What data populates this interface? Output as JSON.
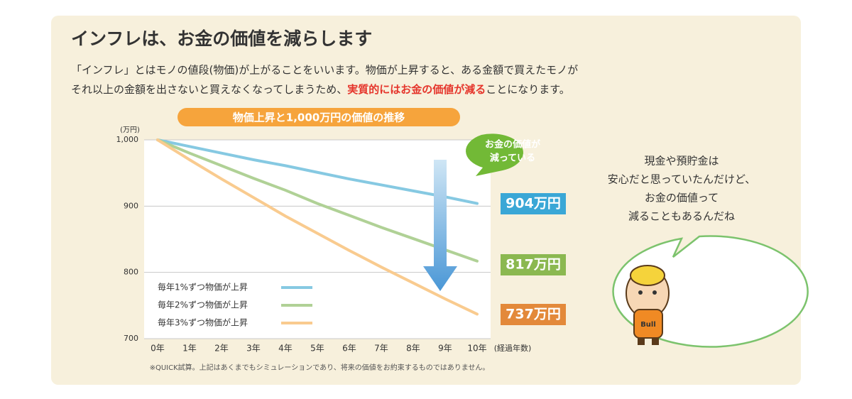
{
  "header": {
    "title": "インフレは、お金の価値を減らします",
    "description": {
      "line1": "「インフレ」とはモノの値段(物価)が上がることをいいます。物価が上昇すると、ある金額で買えたモノが",
      "line2_before": "それ以上の金額を出さないと買えなくなってしまうため、",
      "line2_highlight": "実質的にはお金の価値が減る",
      "line2_after": "ことになります。"
    }
  },
  "chart_data": {
    "type": "line",
    "title": "物価上昇と1,000万円の価値の推移",
    "y_unit": "(万円)",
    "x_unit": "(経過年数)",
    "categories": [
      "0年",
      "1年",
      "2年",
      "3年",
      "4年",
      "5年",
      "6年",
      "7年",
      "8年",
      "9年",
      "10年"
    ],
    "series": [
      {
        "name": "毎年1%ずつ物価が上昇",
        "color": "#86c9e2",
        "label_color": "#3aa7d6",
        "values": [
          1000,
          990,
          980,
          970,
          961,
          951,
          941,
          932,
          923,
          914,
          904
        ],
        "end_label": "904万円"
      },
      {
        "name": "毎年2%ずつ物価が上昇",
        "color": "#b0d196",
        "label_color": "#8bb850",
        "values": [
          1000,
          980,
          961,
          942,
          924,
          904,
          886,
          868,
          851,
          834,
          817
        ],
        "end_label": "817万円"
      },
      {
        "name": "毎年3%ずつ物価が上昇",
        "color": "#f9cb8f",
        "label_color": "#e3893a",
        "values": [
          1000,
          970,
          941,
          913,
          885,
          859,
          833,
          808,
          784,
          760,
          737
        ],
        "end_label": "737万円"
      }
    ],
    "ylim": [
      700,
      1000
    ],
    "yticks": [
      700,
      800,
      900,
      {
        "value": 1000,
        "label": "1,000"
      }
    ],
    "grid": true,
    "annotation": [
      "お金の価値が",
      "減っている"
    ],
    "footnote": "※QUICK試算。上記はあくまでもシミュレーションであり、将来の価値をお約束するものではありません。"
  },
  "speech": [
    "現金や預貯金は",
    "安心だと思っていたんだけど、",
    "お金の価値って",
    "減ることもあるんだね"
  ],
  "character_badge": "Bull"
}
